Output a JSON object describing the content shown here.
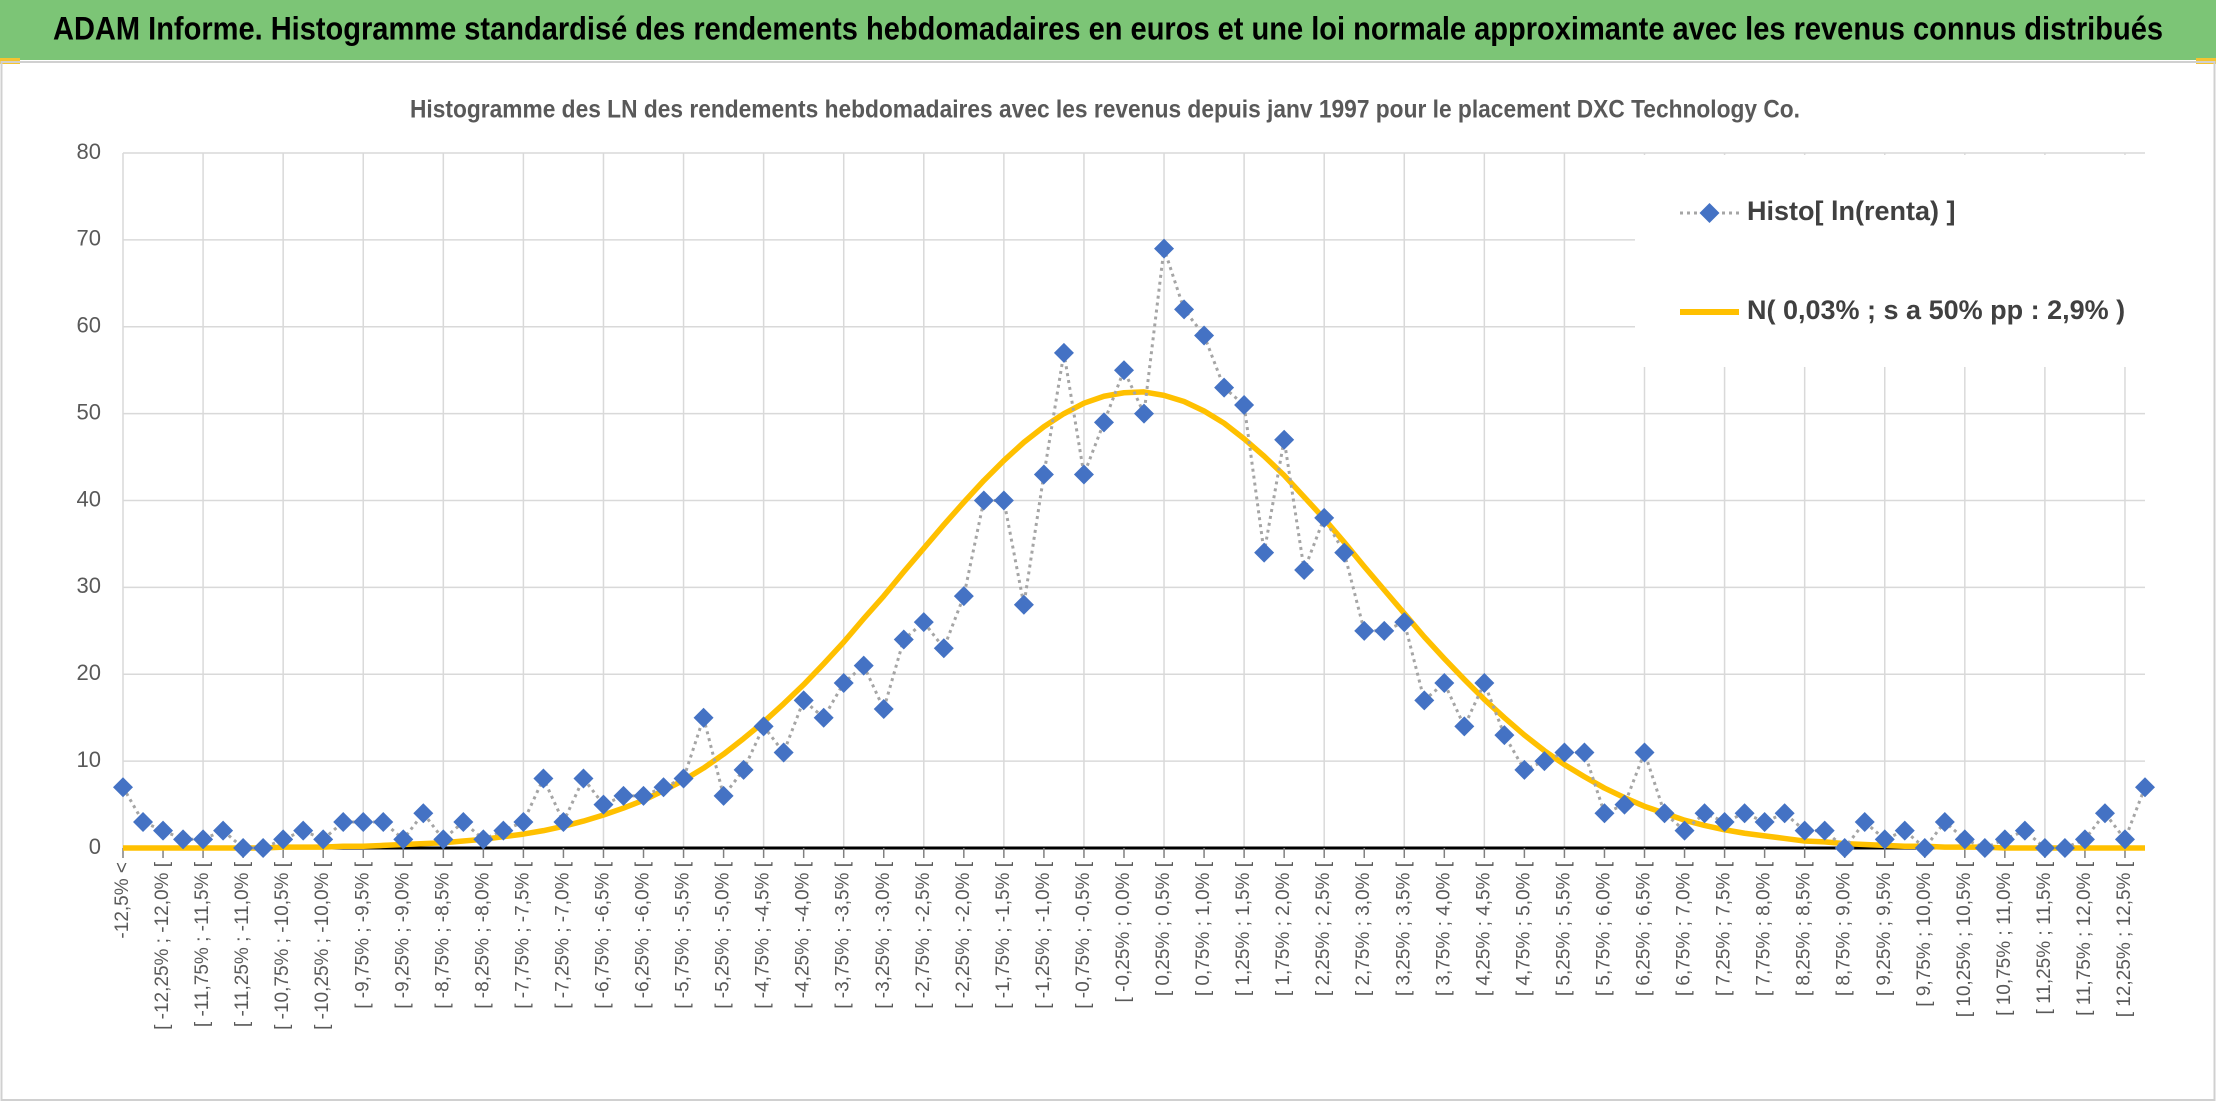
{
  "header": {
    "title": "ADAM Informe. Histogramme standardisé des rendements hebdomadaires en euros et une loi normale approximante avec les revenus connus distribués"
  },
  "chart_data": {
    "type": "line",
    "title": "Histogramme des LN des rendements hebdomadaires avec les revenus depuis janv 1997 pour le placement DXC Technology Co.",
    "categories": [
      "-12,5% <",
      null,
      "[ -12,25% ; -12,0% [",
      null,
      "[ -11,75% ; -11,5% [",
      null,
      "[ -11,25% ; -11,0% [",
      null,
      "[ -10,75% ; -10,5% [",
      null,
      "[ -10,25% ; -10,0% [",
      null,
      "[ -9,75% ; -9,5% [",
      null,
      "[ -9,25% ; -9,0% [",
      null,
      "[ -8,75% ; -8,5% [",
      null,
      "[ -8,25% ; -8,0% [",
      null,
      "[ -7,75% ; -7,5% [",
      null,
      "[ -7,25% ; -7,0% [",
      null,
      "[ -6,75% ; -6,5% [",
      null,
      "[ -6,25% ; -6,0% [",
      null,
      "[ -5,75% ; -5,5% [",
      null,
      "[ -5,25% ; -5,0% [",
      null,
      "[ -4,75% ; -4,5% [",
      null,
      "[ -4,25% ; -4,0% [",
      null,
      "[ -3,75% ; -3,5% [",
      null,
      "[ -3,25% ; -3,0% [",
      null,
      "[ -2,75% ; -2,5% [",
      null,
      "[ -2,25% ; -2,0% [",
      null,
      "[ -1,75% ; -1,5% [",
      null,
      "[ -1,25% ; -1,0% [",
      null,
      "[ -0,75% ; -0,5% [",
      null,
      "[ -0,25% ; 0,0% [",
      null,
      "[ 0,25% ; 0,5% [",
      null,
      "[ 0,75% ; 1,0% [",
      null,
      "[ 1,25% ; 1,5% [",
      null,
      "[ 1,75% ; 2,0% [",
      null,
      "[ 2,25% ; 2,5% [",
      null,
      "[ 2,75% ; 3,0% [",
      null,
      "[ 3,25% ; 3,5% [",
      null,
      "[ 3,75% ; 4,0% [",
      null,
      "[ 4,25% ; 4,5% [",
      null,
      "[ 4,75% ; 5,0% [",
      null,
      "[ 5,25% ; 5,5% [",
      null,
      "[ 5,75% ; 6,0% [",
      null,
      "[ 6,25% ; 6,5% [",
      null,
      "[ 6,75% ; 7,0% [",
      null,
      "[ 7,25% ; 7,5% [",
      null,
      "[ 7,75% ; 8,0% [",
      null,
      "[ 8,25% ; 8,5% [",
      null,
      "[ 8,75% ; 9,0% [",
      null,
      "[ 9,25% ; 9,5% [",
      null,
      "[ 9,75% ; 10,0% [",
      null,
      "[ 10,25% ; 10,5% [",
      null,
      "[ 10,75% ; 11,0% [",
      null,
      "[ 11,25% ; 11,5% [",
      null,
      "[ 11,75% ; 12,0% [",
      null,
      "[ 12,25% ; 12,5% [",
      null
    ],
    "series": [
      {
        "name": "Histo[ ln(renta) ]",
        "color": "#4472c4",
        "line_color": "#a5a5a5",
        "marker": "diamond",
        "values": [
          7,
          3,
          2,
          1,
          1,
          2,
          0,
          0,
          1,
          2,
          1,
          3,
          3,
          3,
          1,
          4,
          1,
          3,
          1,
          2,
          3,
          8,
          3,
          8,
          5,
          6,
          6,
          7,
          8,
          15,
          6,
          9,
          14,
          11,
          17,
          15,
          19,
          21,
          16,
          24,
          26,
          23,
          29,
          40,
          40,
          28,
          43,
          57,
          43,
          49,
          55,
          50,
          69,
          62,
          59,
          53,
          51,
          34,
          47,
          32,
          38,
          34,
          25,
          25,
          26,
          17,
          19,
          14,
          19,
          13,
          9,
          10,
          11,
          11,
          4,
          5,
          11,
          4,
          2,
          4,
          3,
          4,
          3,
          4,
          2,
          2,
          0,
          3,
          1,
          2,
          0,
          3,
          1,
          0,
          1,
          2,
          0,
          0,
          1,
          4,
          1,
          7
        ]
      },
      {
        "name": "N( 0,03% ; s a 50% pp : 2,9% )",
        "color": "#ffc000",
        "values": [
          0,
          0,
          0,
          0,
          0,
          0,
          0,
          0,
          0.1,
          0.1,
          0.1,
          0.2,
          0.2,
          0.3,
          0.4,
          0.5,
          0.6,
          0.8,
          1.0,
          1.3,
          1.6,
          2.0,
          2.5,
          3.1,
          3.8,
          4.6,
          5.5,
          6.6,
          7.8,
          9.2,
          10.8,
          12.6,
          14.5,
          16.6,
          18.8,
          21.2,
          23.7,
          26.4,
          29.0,
          31.8,
          34.5,
          37.2,
          39.8,
          42.3,
          44.6,
          46.7,
          48.5,
          50.0,
          51.2,
          52.0,
          52.4,
          52.5,
          52.1,
          51.4,
          50.3,
          48.9,
          47.1,
          45.1,
          42.9,
          40.4,
          37.9,
          35.2,
          32.4,
          29.7,
          27.0,
          24.3,
          21.8,
          19.4,
          17.1,
          15.0,
          13.0,
          11.2,
          9.6,
          8.2,
          6.9,
          5.8,
          4.8,
          4.0,
          3.2,
          2.6,
          2.1,
          1.7,
          1.4,
          1.1,
          0.8,
          0.7,
          0.5,
          0.4,
          0.3,
          0.2,
          0.2,
          0.1,
          0.1,
          0.1,
          0,
          0,
          0,
          0,
          0,
          0,
          0,
          0
        ]
      }
    ],
    "ylim": [
      0,
      80
    ],
    "yticks": [
      0,
      10,
      20,
      30,
      40,
      50,
      60,
      70,
      80
    ],
    "grid": true,
    "legend": "top-right"
  }
}
